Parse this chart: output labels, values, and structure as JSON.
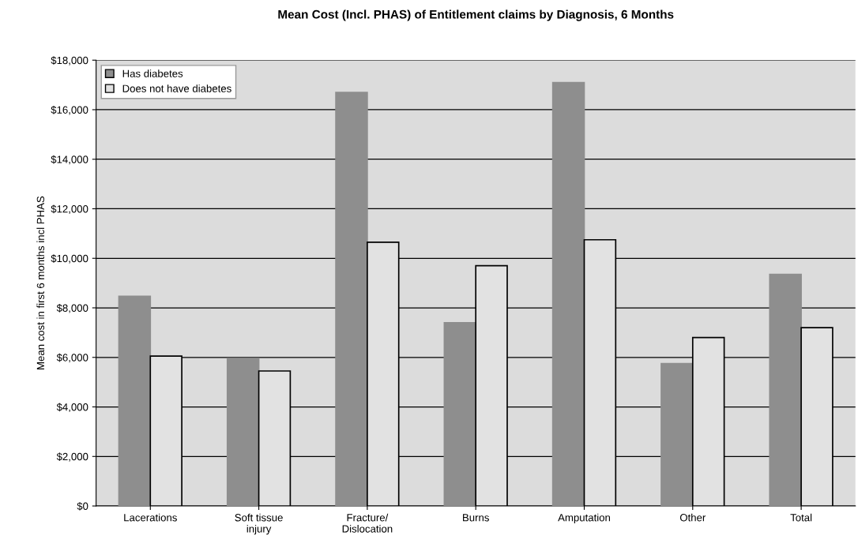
{
  "chart_data": {
    "type": "bar",
    "title": "Mean Cost (Incl. PHAS) of Entitlement claims by Diagnosis, 6 Months",
    "ylabel": "Mean cost in first 6 months incl PHAS",
    "categories": [
      "Lacerations",
      "Soft tissue\ninjury",
      "Fracture/\nDislocation",
      "Burns",
      "Amputation",
      "Other",
      "Total"
    ],
    "series": [
      {
        "name": "Has diabetes",
        "color": "#8e8e8e",
        "values": [
          8470,
          5950,
          16700,
          7400,
          17100,
          5750,
          9350
        ]
      },
      {
        "name": "Does not have diabetes",
        "color": "#e2e2e2",
        "values": [
          6050,
          5450,
          10650,
          9700,
          10750,
          6800,
          7200
        ]
      }
    ],
    "ylim": [
      0,
      18000
    ],
    "yticks": [
      {
        "value": 0,
        "label": "$0"
      },
      {
        "value": 2000,
        "label": "$2,000"
      },
      {
        "value": 4000,
        "label": "$4,000"
      },
      {
        "value": 6000,
        "label": "$6,000"
      },
      {
        "value": 8000,
        "label": "$8,000"
      },
      {
        "value": 10000,
        "label": "$10,000"
      },
      {
        "value": 12000,
        "label": "$12,000"
      },
      {
        "value": 14000,
        "label": "$14,000"
      },
      {
        "value": 16000,
        "label": "$16,000"
      },
      {
        "value": 18000,
        "label": "$18,000"
      }
    ],
    "grid": "y",
    "legend": "top left"
  }
}
